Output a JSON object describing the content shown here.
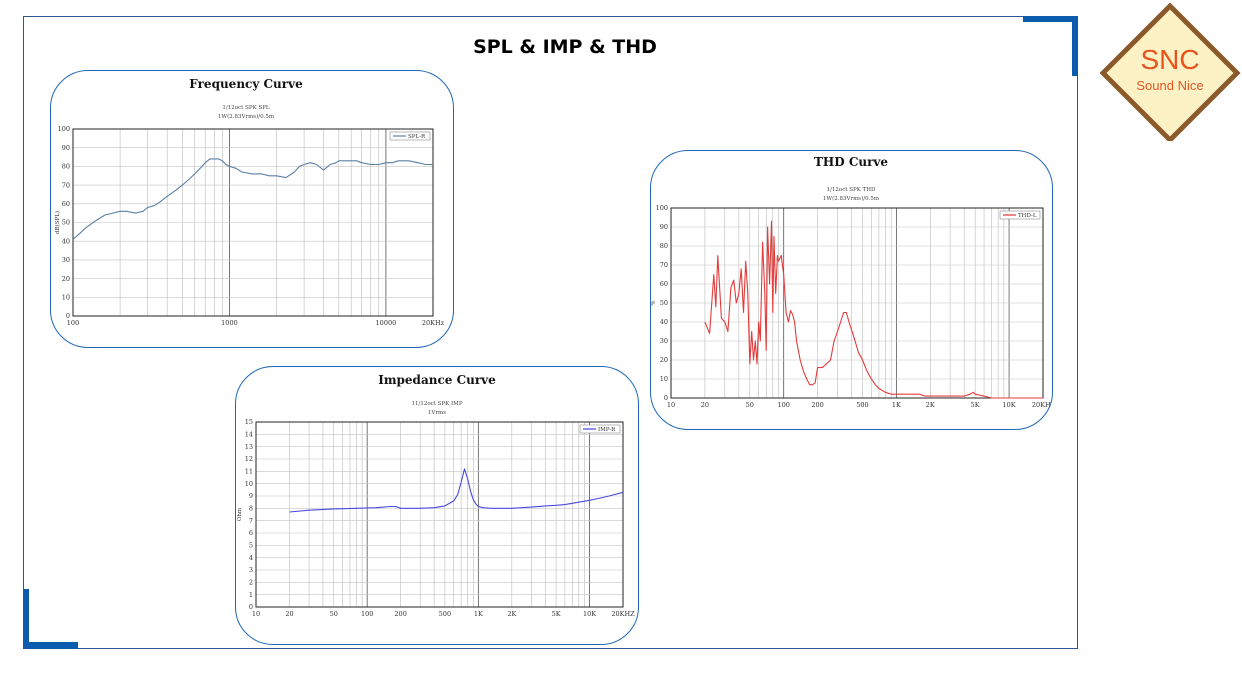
{
  "slide_title": "SPL & IMP & THD",
  "logo": {
    "text_main": "SNC",
    "text_sub": "Sound Nice",
    "border_color": "#8b5a2b",
    "fill_color": "#fdf2c6",
    "text_color": "#e8541e"
  },
  "colors": {
    "frame": "#2f5597",
    "corner": "#0b5cad",
    "panel_border": "#1f67b5"
  },
  "chart_data": [
    {
      "id": "freq",
      "type": "line",
      "title": "Frequency Curve",
      "subtitle": [
        "1/12oct SPK SPL",
        "1W(2.83Vrms)/0.5m"
      ],
      "xlabel": "",
      "ylabel": "dB(SPL)",
      "xscale": "log",
      "xlim": [
        100,
        20000
      ],
      "ylim": [
        0,
        100
      ],
      "ystep": 10,
      "xticks": [
        {
          "v": 100,
          "l": "100"
        },
        {
          "v": 1000,
          "l": "1000"
        },
        {
          "v": 10000,
          "l": "10000"
        },
        {
          "v": 20000,
          "l": "20KHz"
        }
      ],
      "legend": "top-right",
      "grid": true,
      "color": "#5b7fa6",
      "series": [
        {
          "name": "SPL-R",
          "x": [
            100,
            110,
            120,
            140,
            160,
            180,
            200,
            220,
            250,
            280,
            300,
            330,
            360,
            400,
            450,
            500,
            550,
            600,
            650,
            700,
            750,
            800,
            850,
            900,
            950,
            1000,
            1100,
            1200,
            1400,
            1600,
            1800,
            2000,
            2300,
            2600,
            2800,
            3000,
            3300,
            3600,
            4000,
            4400,
            4800,
            5000,
            5500,
            6000,
            6500,
            7000,
            8000,
            9000,
            10000,
            11000,
            12000,
            13000,
            14000,
            16000,
            18000,
            20000
          ],
          "y": [
            41,
            44,
            47,
            51,
            54,
            55,
            56,
            56,
            55,
            56,
            58,
            59,
            61,
            64,
            67,
            70,
            73,
            76,
            79,
            82,
            84,
            84,
            84,
            83,
            81,
            80,
            79,
            77,
            76,
            76,
            75,
            75,
            74,
            77,
            80,
            81,
            82,
            81,
            78,
            81,
            82,
            83,
            83,
            83,
            83,
            82,
            81,
            81,
            82,
            82,
            83,
            83,
            83,
            82,
            81,
            81
          ]
        }
      ]
    },
    {
      "id": "imp",
      "type": "line",
      "title": "Impedance Curve",
      "subtitle": [
        "11/12oct SPK IMP",
        "1Vrms"
      ],
      "xlabel": "",
      "ylabel": "Ohm",
      "xscale": "log",
      "xlim": [
        10,
        20000
      ],
      "ylim": [
        0,
        15
      ],
      "ystep": 1,
      "xticks": [
        {
          "v": 10,
          "l": "10"
        },
        {
          "v": 20,
          "l": "20"
        },
        {
          "v": 50,
          "l": "50"
        },
        {
          "v": 100,
          "l": "100"
        },
        {
          "v": 200,
          "l": "200"
        },
        {
          "v": 500,
          "l": "500"
        },
        {
          "v": 1000,
          "l": "1K"
        },
        {
          "v": 2000,
          "l": "2K"
        },
        {
          "v": 5000,
          "l": "5K"
        },
        {
          "v": 10000,
          "l": "10K"
        },
        {
          "v": 20000,
          "l": "20KHZ"
        }
      ],
      "legend": "top-right",
      "grid": true,
      "color": "#4a4ae0",
      "series": [
        {
          "name": "IMP-R",
          "x": [
            20,
            30,
            50,
            80,
            120,
            160,
            180,
            200,
            300,
            400,
            500,
            600,
            650,
            700,
            750,
            800,
            850,
            900,
            950,
            1000,
            1100,
            1300,
            1600,
            2000,
            3000,
            4000,
            5000,
            6000,
            8000,
            10000,
            12000,
            15000,
            20000
          ],
          "y": [
            7.7,
            7.85,
            7.95,
            8.0,
            8.05,
            8.15,
            8.15,
            8.0,
            8.0,
            8.05,
            8.2,
            8.6,
            9.1,
            10.1,
            11.2,
            10.4,
            9.4,
            8.7,
            8.35,
            8.15,
            8.05,
            8.0,
            8.0,
            8.0,
            8.1,
            8.2,
            8.25,
            8.3,
            8.5,
            8.65,
            8.8,
            9.0,
            9.3
          ]
        }
      ]
    },
    {
      "id": "thd",
      "type": "line",
      "title": "THD Curve",
      "subtitle": [
        "1/12oct SPK THD",
        "1W(2.83Vrms)/0.5m"
      ],
      "xlabel": "",
      "ylabel": "%",
      "xscale": "log",
      "xlim": [
        10,
        20000
      ],
      "ylim": [
        0,
        100
      ],
      "ystep": 10,
      "xticks": [
        {
          "v": 10,
          "l": "10"
        },
        {
          "v": 20,
          "l": "20"
        },
        {
          "v": 50,
          "l": "50"
        },
        {
          "v": 100,
          "l": "100"
        },
        {
          "v": 200,
          "l": "200"
        },
        {
          "v": 500,
          "l": "500"
        },
        {
          "v": 1000,
          "l": "1K"
        },
        {
          "v": 2000,
          "l": "2K"
        },
        {
          "v": 5000,
          "l": "5K"
        },
        {
          "v": 10000,
          "l": "10K"
        },
        {
          "v": 20000,
          "l": "20KHz"
        }
      ],
      "legend": "top-right",
      "grid": true,
      "color": "#e43b3b",
      "series": [
        {
          "name": "THD-L",
          "x": [
            20,
            22,
            24,
            25,
            26,
            28,
            30,
            32,
            34,
            36,
            38,
            40,
            42,
            44,
            46,
            48,
            50,
            52,
            54,
            56,
            58,
            60,
            62,
            65,
            68,
            70,
            72,
            75,
            78,
            80,
            82,
            85,
            88,
            90,
            95,
            100,
            105,
            110,
            115,
            120,
            125,
            130,
            140,
            150,
            160,
            170,
            180,
            190,
            200,
            220,
            240,
            260,
            280,
            300,
            320,
            340,
            360,
            380,
            400,
            420,
            440,
            460,
            480,
            500,
            550,
            600,
            650,
            700,
            800,
            900,
            1000,
            1200,
            1400,
            1600,
            1800,
            2000,
            2500,
            3000,
            3500,
            4000,
            4500,
            4800,
            5000,
            6000,
            7000,
            8000,
            10000,
            12000,
            15000,
            20000
          ],
          "y": [
            40,
            34,
            65,
            48,
            75,
            42,
            40,
            35,
            58,
            62,
            50,
            55,
            68,
            45,
            72,
            55,
            18,
            35,
            20,
            30,
            18,
            40,
            30,
            82,
            55,
            25,
            90,
            60,
            93,
            45,
            85,
            55,
            75,
            72,
            75,
            65,
            45,
            40,
            46,
            44,
            40,
            30,
            20,
            14,
            10,
            7,
            7,
            8,
            16,
            16,
            18,
            20,
            30,
            35,
            40,
            45,
            45,
            40,
            36,
            32,
            28,
            24,
            22,
            20,
            14,
            10,
            7,
            5,
            3,
            2,
            2,
            2,
            2,
            2,
            1,
            1,
            1,
            1,
            1,
            1,
            2,
            3,
            2,
            1,
            0,
            0,
            0,
            0,
            0,
            0
          ]
        }
      ]
    }
  ]
}
